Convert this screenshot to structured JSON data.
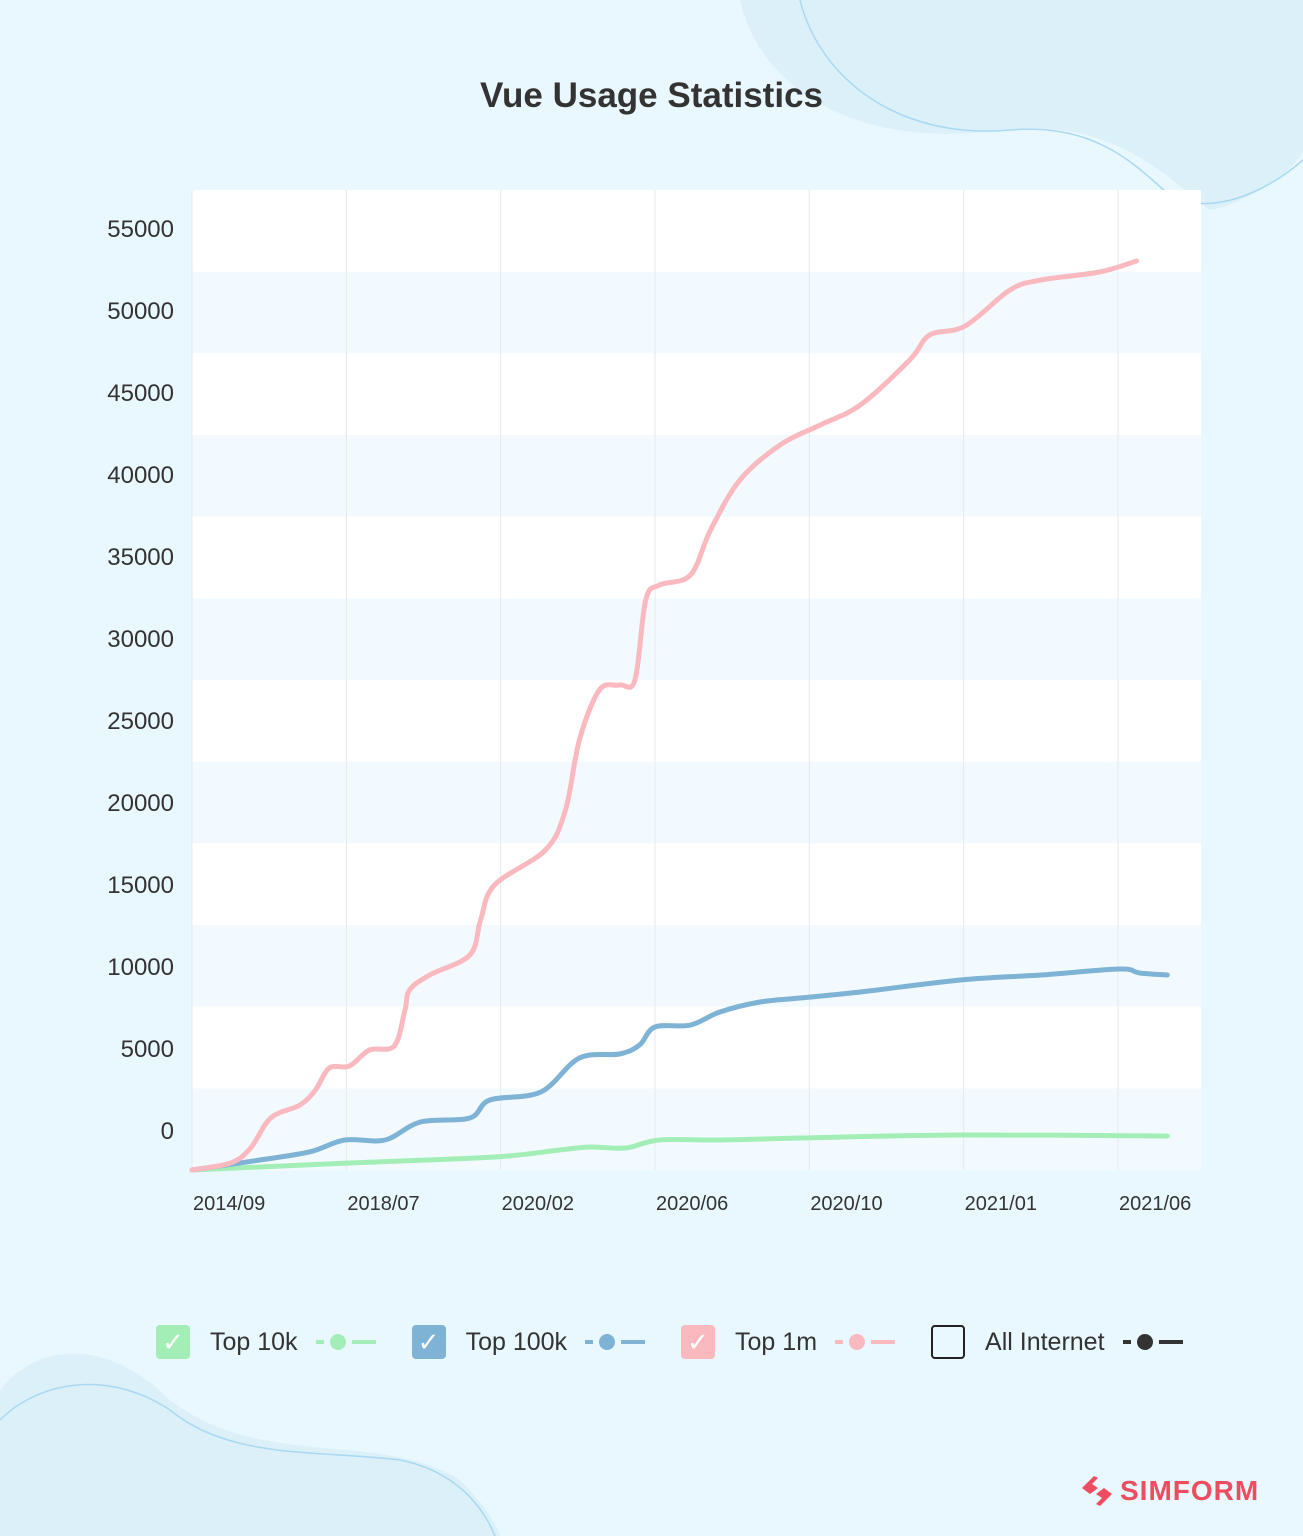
{
  "chart_data": {
    "type": "line",
    "title": "Vue Usage Statistics",
    "x_ticks": [
      "2014/09",
      "2018/07",
      "2020/02",
      "2020/06",
      "2020/10",
      "2021/01",
      "2021/06"
    ],
    "y_ticks": [
      0,
      5000,
      10000,
      15000,
      20000,
      25000,
      30000,
      35000,
      40000,
      45000,
      50000,
      55000
    ],
    "ylim": [
      -2400,
      57400
    ],
    "grid": {
      "vertical": true,
      "horizontal_bands": true
    },
    "legend_position": "bottom",
    "series": [
      {
        "name": "Top 10k",
        "color": "#a3eeb6",
        "checked": true,
        "points": [
          [
            0,
            -2378
          ],
          [
            1.02,
            -1951
          ],
          [
            1.96,
            -1585
          ],
          [
            2.38,
            -1159
          ],
          [
            2.58,
            -976
          ],
          [
            2.81,
            -1037
          ],
          [
            3.03,
            -549
          ],
          [
            3.42,
            -549
          ],
          [
            3.94,
            -427
          ],
          [
            4.98,
            -244
          ],
          [
            6.32,
            -305
          ]
        ]
      },
      {
        "name": "Top 100k",
        "color": "#7eb3d6",
        "checked": true,
        "points": [
          [
            0,
            -2378
          ],
          [
            0.44,
            -1768
          ],
          [
            0.76,
            -1280
          ],
          [
            0.99,
            -549
          ],
          [
            1.25,
            -549
          ],
          [
            1.48,
            549
          ],
          [
            1.8,
            793
          ],
          [
            1.93,
            1890
          ],
          [
            2.26,
            2378
          ],
          [
            2.51,
            4451
          ],
          [
            2.77,
            4695
          ],
          [
            2.9,
            5244
          ],
          [
            3.0,
            6341
          ],
          [
            3.23,
            6463
          ],
          [
            3.42,
            7256
          ],
          [
            3.68,
            7866
          ],
          [
            3.94,
            8110
          ],
          [
            4.33,
            8476
          ],
          [
            4.98,
            9207
          ],
          [
            5.5,
            9512
          ],
          [
            6.01,
            9878
          ],
          [
            6.14,
            9634
          ],
          [
            6.32,
            9512
          ]
        ]
      },
      {
        "name": "Top 1m",
        "color": "#f9b9bf",
        "checked": true,
        "points": [
          [
            0,
            -2378
          ],
          [
            0.25,
            -1951
          ],
          [
            0.38,
            -1037
          ],
          [
            0.51,
            793
          ],
          [
            0.7,
            1586
          ],
          [
            0.8,
            2500
          ],
          [
            0.89,
            3841
          ],
          [
            1.02,
            3963
          ],
          [
            1.15,
            4939
          ],
          [
            1.31,
            5183
          ],
          [
            1.38,
            7378
          ],
          [
            1.41,
            8598
          ],
          [
            1.54,
            9512
          ],
          [
            1.8,
            10732
          ],
          [
            1.87,
            12866
          ],
          [
            1.96,
            15000
          ],
          [
            2.29,
            17134
          ],
          [
            2.42,
            19573
          ],
          [
            2.51,
            23841
          ],
          [
            2.64,
            26890
          ],
          [
            2.77,
            27195
          ],
          [
            2.87,
            27500
          ],
          [
            2.94,
            32378
          ],
          [
            3.03,
            33293
          ],
          [
            3.23,
            33902
          ],
          [
            3.36,
            36646
          ],
          [
            3.55,
            39695
          ],
          [
            3.81,
            41829
          ],
          [
            4.07,
            43049
          ],
          [
            4.33,
            44268
          ],
          [
            4.65,
            47012
          ],
          [
            4.78,
            48537
          ],
          [
            5.01,
            49085
          ],
          [
            5.3,
            51280
          ],
          [
            5.5,
            51890
          ],
          [
            5.88,
            52378
          ],
          [
            6.12,
            53049
          ]
        ]
      },
      {
        "name": "All Internet",
        "color": "#333333",
        "checked": false,
        "points": []
      }
    ]
  },
  "brand": {
    "name": "SIMFORM",
    "color": "#ee4d5f"
  }
}
